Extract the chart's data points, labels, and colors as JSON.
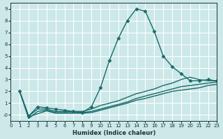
{
  "title": "",
  "xlabel": "Humidex (Indice chaleur)",
  "ylabel": "",
  "bg_color": "#cce8e8",
  "grid_color": "#ffffff",
  "line_color": "#1a6b6b",
  "xlim": [
    0,
    23
  ],
  "ylim": [
    -0.5,
    9.5
  ],
  "xticks": [
    0,
    1,
    2,
    3,
    4,
    5,
    6,
    7,
    8,
    9,
    10,
    11,
    12,
    13,
    14,
    15,
    16,
    17,
    18,
    19,
    20,
    21,
    22,
    23
  ],
  "yticks": [
    0,
    1,
    2,
    3,
    4,
    5,
    6,
    7,
    8,
    9
  ],
  "series": [
    {
      "x": [
        1,
        2,
        3,
        4,
        5,
        6,
        7,
        8,
        9,
        10,
        11,
        12,
        13,
        14,
        15,
        16,
        17,
        18,
        19,
        20,
        21,
        22,
        23
      ],
      "y": [
        2.0,
        -0.1,
        0.7,
        0.6,
        0.5,
        0.4,
        0.3,
        0.2,
        0.7,
        2.3,
        4.6,
        6.5,
        8.0,
        9.0,
        8.8,
        7.1,
        5.0,
        4.1,
        3.5,
        2.9,
        2.9,
        3.0,
        2.9
      ],
      "marker": true
    },
    {
      "x": [
        1,
        2,
        3,
        4,
        5,
        6,
        7,
        8,
        9,
        10,
        11,
        12,
        13,
        14,
        15,
        16,
        17,
        18,
        19,
        20,
        21,
        22,
        23
      ],
      "y": [
        2.0,
        -0.1,
        0.5,
        0.5,
        0.3,
        0.3,
        0.3,
        0.3,
        0.5,
        0.8,
        1.0,
        1.2,
        1.5,
        1.8,
        2.0,
        2.2,
        2.5,
        2.7,
        3.0,
        3.2,
        3.0,
        2.9,
        2.9
      ],
      "marker": false
    },
    {
      "x": [
        1,
        2,
        3,
        4,
        5,
        6,
        7,
        8,
        9,
        10,
        11,
        12,
        13,
        14,
        15,
        16,
        17,
        18,
        19,
        20,
        21,
        22,
        23
      ],
      "y": [
        2.0,
        -0.3,
        0.3,
        0.4,
        0.2,
        0.2,
        0.2,
        0.2,
        0.3,
        0.5,
        0.7,
        0.9,
        1.1,
        1.4,
        1.6,
        1.8,
        2.0,
        2.2,
        2.4,
        2.5,
        2.6,
        2.7,
        2.8
      ],
      "marker": false
    },
    {
      "x": [
        1,
        2,
        3,
        4,
        5,
        6,
        7,
        8,
        9,
        10,
        11,
        12,
        13,
        14,
        15,
        16,
        17,
        18,
        19,
        20,
        21,
        22,
        23
      ],
      "y": [
        2.0,
        -0.15,
        0.1,
        0.35,
        0.15,
        0.15,
        0.15,
        0.15,
        0.2,
        0.4,
        0.6,
        0.8,
        1.0,
        1.25,
        1.4,
        1.6,
        1.8,
        2.0,
        2.1,
        2.2,
        2.3,
        2.5,
        2.6
      ],
      "marker": false
    }
  ]
}
